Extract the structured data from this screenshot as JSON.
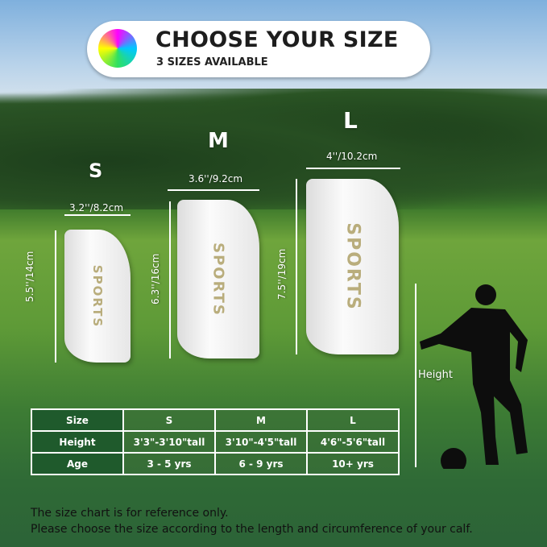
{
  "banner": {
    "title": "CHOOSE YOUR SIZE",
    "subtitle": "3 SIZES AVAILABLE",
    "icon": "soccer-ball-icon"
  },
  "guards": [
    {
      "size": "S",
      "width": "3.2''/8.2cm",
      "length": "5.5''/14cm",
      "print": "SPORTS"
    },
    {
      "size": "M",
      "width": "3.6''/9.2cm",
      "length": "6.3''/16cm",
      "print": "SPORTS"
    },
    {
      "size": "L",
      "width": "4''/10.2cm",
      "length": "7.5''/19cm",
      "print": "SPORTS"
    }
  ],
  "height_label": "Height",
  "table": {
    "rows": [
      [
        "Size",
        "S",
        "M",
        "L"
      ],
      [
        "Height",
        "3'3\"-3'10\"tall",
        "3'10\"-4'5\"tall",
        "4'6\"-5'6\"tall"
      ],
      [
        "Age",
        "3 - 5 yrs",
        "6 - 9 yrs",
        "10+ yrs"
      ]
    ]
  },
  "footer": {
    "line1": "The size chart is for reference only.",
    "line2": "Please choose the size according to the length and circumference of your calf."
  }
}
